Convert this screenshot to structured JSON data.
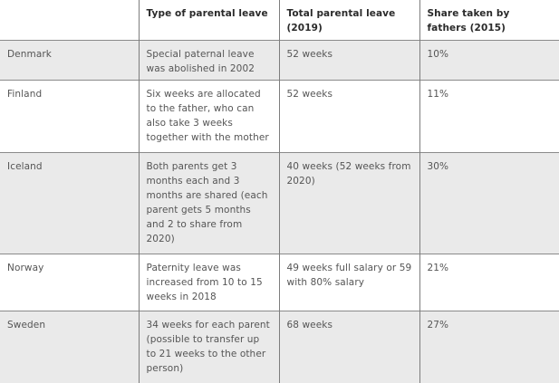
{
  "table": {
    "headers": [
      "",
      "Type of parental leave",
      "Total parental leave (2019)",
      "Share taken by fathers (2015)"
    ],
    "rows": [
      {
        "country": "Denmark",
        "type": "Special paternal leave was abolished in 2002",
        "total": "52 weeks",
        "share": "10%"
      },
      {
        "country": "Finland",
        "type": "Six weeks are allocated to the father, who can also take 3 weeks together with the mother",
        "total": "52 weeks",
        "share": "11%"
      },
      {
        "country": "Iceland",
        "type": "Both parents get 3 months each and 3 months are shared (each parent gets 5 months and 2 to share from 2020)",
        "total": "40 weeks (52 weeks from 2020)",
        "share": "30%"
      },
      {
        "country": "Norway",
        "type": "Paternity leave was increased from 10 to 15 weeks in 2018",
        "total": "49 weeks full salary or 59 with 80% salary",
        "share": "21%"
      },
      {
        "country": "Sweden",
        "type": "34 weeks for each parent (possible to transfer up to 21 weeks to the other person)",
        "total": "68 weeks",
        "share": "27%"
      }
    ]
  }
}
